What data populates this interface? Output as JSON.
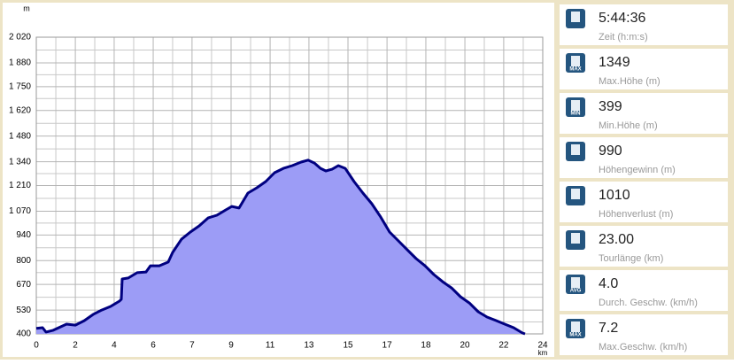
{
  "chart_data": {
    "type": "area",
    "y_unit": "m",
    "x_unit": "km",
    "x": [
      0,
      0.3,
      0.46,
      0.8,
      1.43,
      1.85,
      2.27,
      2.69,
      3.1,
      3.52,
      3.94,
      4.03,
      4.07,
      4.36,
      4.78,
      5.2,
      5.41,
      5.83,
      6.25,
      6.46,
      6.88,
      7.3,
      7.72,
      8.14,
      8.56,
      8.98,
      9.27,
      9.61,
      10.03,
      10.45,
      10.87,
      11.29,
      11.71,
      12.13,
      12.55,
      12.88,
      13.18,
      13.47,
      13.72,
      14.02,
      14.31,
      14.64,
      15.06,
      15.48,
      15.9,
      16.32,
      16.74,
      17.16,
      17.58,
      18,
      18.42,
      18.84,
      19.26,
      19.68,
      20.1,
      20.52,
      20.94,
      21.36,
      21.78,
      22.2,
      22.62,
      23.04,
      23.16
    ],
    "values": [
      430,
      434,
      410,
      420,
      453,
      448,
      472,
      506,
      530,
      550,
      579,
      589,
      700,
      705,
      734,
      738,
      772,
      772,
      792,
      845,
      917,
      956,
      990,
      1033,
      1048,
      1077,
      1096,
      1087,
      1169,
      1198,
      1232,
      1280,
      1304,
      1319,
      1338,
      1349,
      1333,
      1304,
      1290,
      1299,
      1319,
      1304,
      1232,
      1169,
      1111,
      1038,
      956,
      908,
      859,
      811,
      772,
      724,
      685,
      651,
      603,
      569,
      521,
      492,
      473,
      453,
      434,
      405,
      400
    ],
    "color": "#000080",
    "fill": "#9c9cf6",
    "xlim": [
      0,
      24
    ],
    "xticks": [
      0,
      {
        "value": 1.85,
        "label": "2"
      },
      {
        "value": 3.69,
        "label": "4"
      },
      {
        "value": 5.54,
        "label": "6"
      },
      {
        "value": 7.38,
        "label": "7"
      },
      {
        "value": 9.23,
        "label": "9"
      },
      {
        "value": 11.08,
        "label": "11"
      },
      {
        "value": 12.92,
        "label": "13"
      },
      {
        "value": 14.77,
        "label": "15"
      },
      {
        "value": 16.62,
        "label": "17"
      },
      {
        "value": 18.46,
        "label": "18"
      },
      {
        "value": 20.31,
        "label": "20"
      },
      {
        "value": 22.15,
        "label": "22"
      },
      24
    ],
    "ylim": [
      400,
      2020
    ],
    "yticks": [
      400,
      530,
      670,
      800,
      940,
      {
        "value": 1070,
        "label": "1 070"
      },
      {
        "value": 1210,
        "label": "1 210"
      },
      {
        "value": 1340,
        "label": "1 340"
      },
      {
        "value": 1480,
        "label": "1 480"
      },
      {
        "value": 1620,
        "label": "1 620"
      },
      {
        "value": 1750,
        "label": "1 750"
      },
      {
        "value": 1880,
        "label": "1 880"
      },
      {
        "value": 2020,
        "label": "2 020"
      }
    ],
    "grid": true
  },
  "stats": [
    {
      "value": "5:44:36",
      "label": "Zeit (h:m:s)"
    },
    {
      "value": "1349",
      "label": "Max.Höhe (m)",
      "badge": "MAX"
    },
    {
      "value": "399",
      "label": "Min.Höhe (m)",
      "badge": "MIN"
    },
    {
      "value": "990",
      "label": "Höhengewinn (m)"
    },
    {
      "value": "1010",
      "label": "Höhenverlust (m)"
    },
    {
      "value": "23.00",
      "label": "Tourlänge (km)"
    },
    {
      "value": "4.0",
      "label": "Durch. Geschw. (km/h)",
      "badge": "AVG"
    },
    {
      "value": "7.2",
      "label": "Max.Geschw. (km/h)",
      "badge": "MAX"
    }
  ]
}
